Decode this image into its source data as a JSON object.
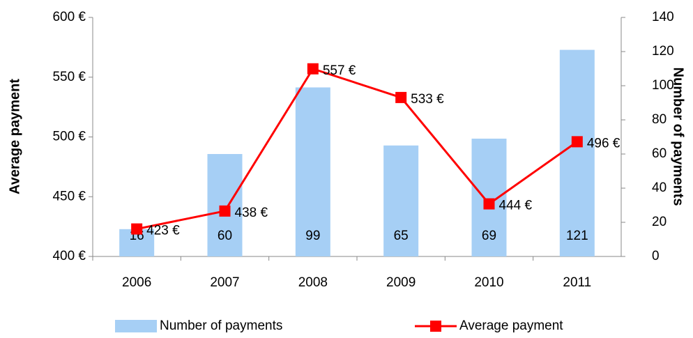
{
  "chart_data": {
    "type": "bar",
    "categories": [
      "2006",
      "2007",
      "2008",
      "2009",
      "2010",
      "2011"
    ],
    "ylabel": "Average payment",
    "y2label": "Number of payments",
    "ylim": [
      400,
      600
    ],
    "yticks": [
      {
        "value": 400,
        "label": "400 €"
      },
      {
        "value": 450,
        "label": "450 €"
      },
      {
        "value": 500,
        "label": "500 €"
      },
      {
        "value": 550,
        "label": "550 €"
      },
      {
        "value": 600,
        "label": "600 €"
      }
    ],
    "y2lim": [
      0,
      140
    ],
    "y2ticks": [
      0,
      20,
      40,
      60,
      80,
      100,
      120,
      140
    ],
    "legend": "bottom",
    "series": [
      {
        "name": "Number of payments",
        "type": "bar",
        "axis": "y2",
        "color": "#a6cff5",
        "values": [
          16,
          60,
          99,
          65,
          69,
          121
        ]
      },
      {
        "name": "Average payment",
        "type": "line",
        "axis": "y",
        "color": "#ff0000",
        "values": [
          423,
          438,
          557,
          533,
          444,
          496
        ],
        "value_labels": [
          "423 €",
          "438 €",
          "557 €",
          "533 €",
          "444 €",
          "496 €"
        ]
      }
    ]
  }
}
